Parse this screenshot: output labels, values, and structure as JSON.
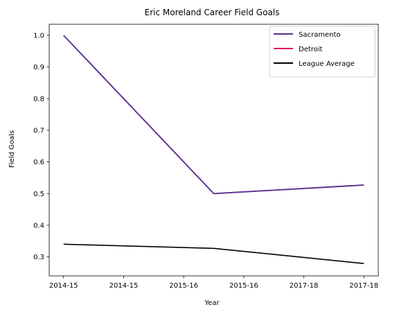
{
  "chart_data": {
    "type": "line",
    "title": "Eric Moreland Career Field Goals",
    "xlabel": "Year",
    "ylabel": "Field Goals",
    "x_tick_labels": [
      "2014-15",
      "2014-15",
      "2015-16",
      "2015-16",
      "2017-18",
      "2017-18"
    ],
    "x_tick_positions": [
      0,
      0.5,
      1,
      1.5,
      2,
      2.5
    ],
    "xlim": [
      -0.12,
      2.62
    ],
    "ylim": [
      0.24,
      1.035
    ],
    "y_ticks": [
      0.3,
      0.4,
      0.5,
      0.6,
      0.7,
      0.8,
      0.9,
      1.0
    ],
    "y_tick_labels": [
      "0.3",
      "0.4",
      "0.5",
      "0.6",
      "0.7",
      "0.8",
      "0.9",
      "1.0"
    ],
    "grid": false,
    "legend_position": "top-right",
    "series": [
      {
        "name": "Sacramento",
        "color": "#5b2d8c",
        "x": [
          0,
          1.25,
          2.5
        ],
        "values": [
          1.0,
          0.5,
          0.527
        ]
      },
      {
        "name": "Detroit",
        "color": "#e0195a",
        "x": [],
        "values": []
      },
      {
        "name": "League Average",
        "color": "#000000",
        "x": [
          0,
          1.25,
          2.5
        ],
        "values": [
          0.34,
          0.327,
          0.279
        ]
      }
    ]
  }
}
